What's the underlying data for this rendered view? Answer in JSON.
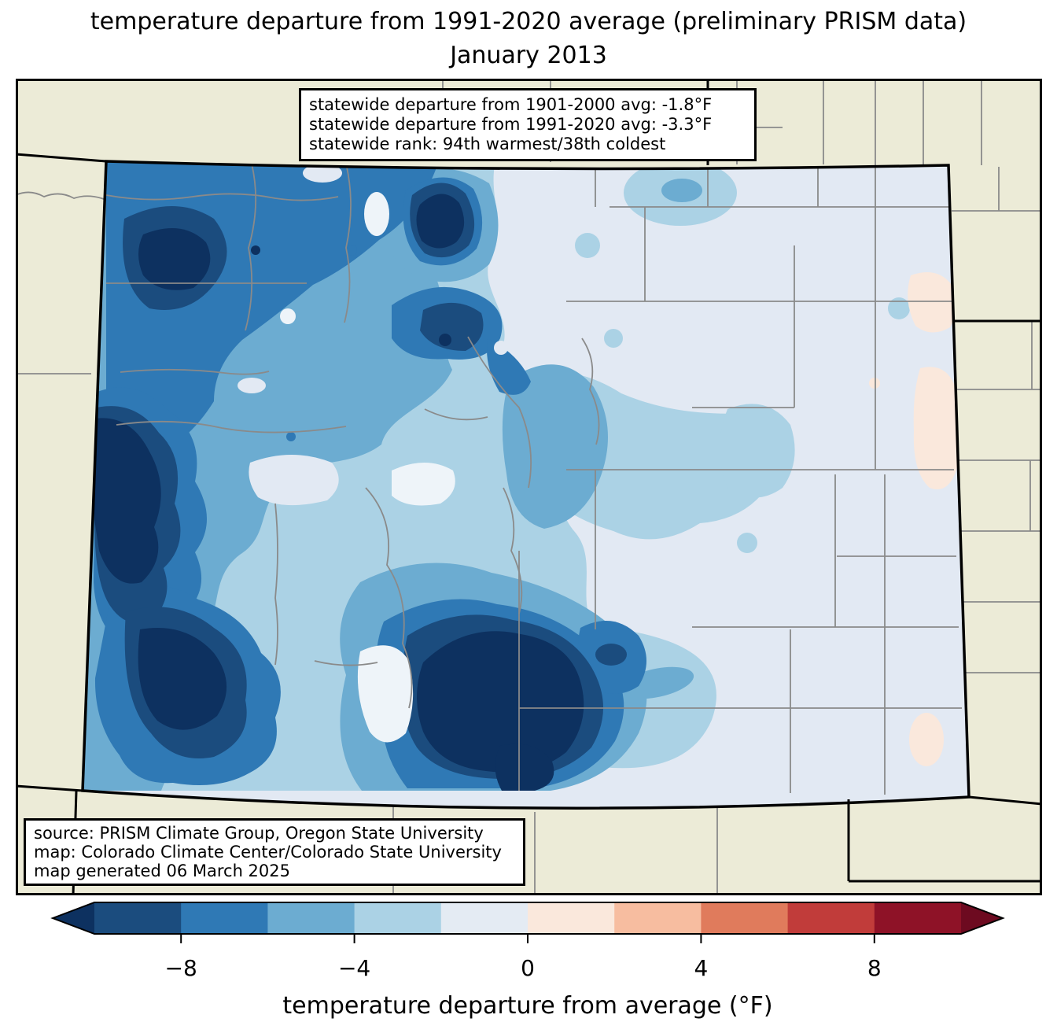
{
  "title": {
    "line1": "temperature departure from 1991-2020 average (preliminary PRISM data)",
    "line2": "January 2013"
  },
  "stats_box": {
    "lines": [
      "statewide departure from 1901-2000 avg: -1.8°F",
      "statewide departure from 1991-2020 avg: -3.3°F",
      "statewide rank: 94th warmest/38th coldest"
    ]
  },
  "source_box": {
    "lines": [
      "source: PRISM Climate Group, Oregon State University",
      "map: Colorado Climate Center/Colorado State University",
      "map generated 06 March 2025"
    ]
  },
  "colorbar": {
    "label": "temperature departure from average (°F)",
    "range": [
      -10,
      10
    ],
    "ticks": [
      {
        "value": -8,
        "label": "−8"
      },
      {
        "value": -4,
        "label": "−4"
      },
      {
        "value": 0,
        "label": "0"
      },
      {
        "value": 4,
        "label": "4"
      },
      {
        "value": 8,
        "label": "8"
      }
    ],
    "segments": [
      {
        "range": [
          -10,
          -8
        ],
        "color": "#1b4c7e"
      },
      {
        "range": [
          -8,
          -6
        ],
        "color": "#2f79b5"
      },
      {
        "range": [
          -6,
          -4
        ],
        "color": "#6cacd1"
      },
      {
        "range": [
          -4,
          -2
        ],
        "color": "#abd2e5"
      },
      {
        "range": [
          -2,
          0
        ],
        "color": "#e4ebf3"
      },
      {
        "range": [
          0,
          2
        ],
        "color": "#fae8dc"
      },
      {
        "range": [
          2,
          4
        ],
        "color": "#f7bda0"
      },
      {
        "range": [
          4,
          6
        ],
        "color": "#e07b5c"
      },
      {
        "range": [
          6,
          8
        ],
        "color": "#c13c3a"
      },
      {
        "range": [
          8,
          10
        ],
        "color": "#8e1227"
      }
    ],
    "under_color": "#0d3160",
    "over_color": "#6d0a20",
    "outline_color": "#000000",
    "tick_label_font_px": 28,
    "axis_label_font_px": 30
  },
  "map": {
    "region": "Colorado with neighboring states",
    "projection_note": "conic-style tilted state outline",
    "county_line_color": "#8a8a8a",
    "state_border_color": "#000000",
    "palette": {
      "outside": "#ecebd7",
      "under": "#0d3160",
      "m10_m8": "#1b4c7e",
      "m8_m6": "#2f79b5",
      "m6_m4": "#6cacd1",
      "m4_m2": "#abd2e5",
      "m2_0": "#e2e9f3",
      "p0_p2": "#fae8dc",
      "light_spot": "#eef4f9"
    }
  }
}
